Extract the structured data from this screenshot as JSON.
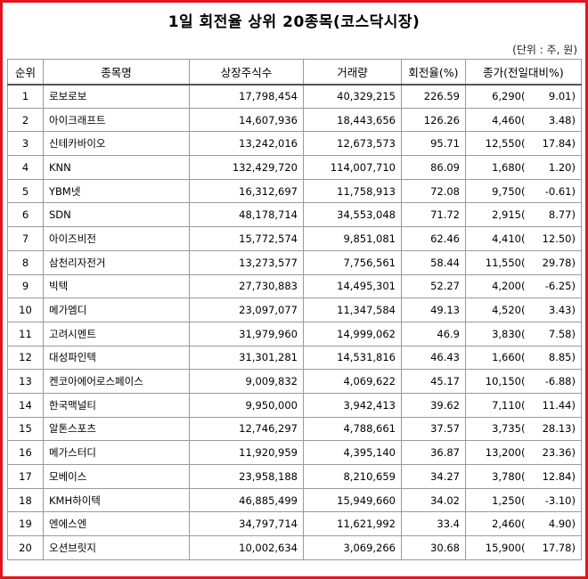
{
  "title": "1일 회전율 상위 20종목(코스닥시장)",
  "unit": "(단위 : 주, 원)",
  "headers": {
    "rank": "순위",
    "name": "종목명",
    "listed": "상장주식수",
    "volume": "거래량",
    "turnover": "회전율(%)",
    "close": "종가(전일대비%)"
  },
  "rows": [
    {
      "rank": "1",
      "name": "로보로보",
      "listed": "17,798,454",
      "volume": "40,329,215",
      "turnover": "226.59",
      "close": "6,290",
      "change": "9.01"
    },
    {
      "rank": "2",
      "name": "아이크래프트",
      "listed": "14,607,936",
      "volume": "18,443,656",
      "turnover": "126.26",
      "close": "4,460",
      "change": "3.48"
    },
    {
      "rank": "3",
      "name": "신테카바이오",
      "listed": "13,242,016",
      "volume": "12,673,573",
      "turnover": "95.71",
      "close": "12,550",
      "change": "17.84"
    },
    {
      "rank": "4",
      "name": "KNN",
      "listed": "132,429,720",
      "volume": "114,007,710",
      "turnover": "86.09",
      "close": "1,680",
      "change": "1.20"
    },
    {
      "rank": "5",
      "name": "YBM넷",
      "listed": "16,312,697",
      "volume": "11,758,913",
      "turnover": "72.08",
      "close": "9,750",
      "change": "-0.61"
    },
    {
      "rank": "6",
      "name": "SDN",
      "listed": "48,178,714",
      "volume": "34,553,048",
      "turnover": "71.72",
      "close": "2,915",
      "change": "8.77"
    },
    {
      "rank": "7",
      "name": "아이즈비전",
      "listed": "15,772,574",
      "volume": "9,851,081",
      "turnover": "62.46",
      "close": "4,410",
      "change": "12.50"
    },
    {
      "rank": "8",
      "name": "삼천리자전거",
      "listed": "13,273,577",
      "volume": "7,756,561",
      "turnover": "58.44",
      "close": "11,550",
      "change": "29.78"
    },
    {
      "rank": "9",
      "name": "빅텍",
      "listed": "27,730,883",
      "volume": "14,495,301",
      "turnover": "52.27",
      "close": "4,200",
      "change": "-6.25"
    },
    {
      "rank": "10",
      "name": "메가엠디",
      "listed": "23,097,077",
      "volume": "11,347,584",
      "turnover": "49.13",
      "close": "4,520",
      "change": "3.43"
    },
    {
      "rank": "11",
      "name": "고려시멘트",
      "listed": "31,979,960",
      "volume": "14,999,062",
      "turnover": "46.9",
      "close": "3,830",
      "change": "7.58"
    },
    {
      "rank": "12",
      "name": "대성파인텍",
      "listed": "31,301,281",
      "volume": "14,531,816",
      "turnover": "46.43",
      "close": "1,660",
      "change": "8.85"
    },
    {
      "rank": "13",
      "name": "켄코아에어로스페이스",
      "listed": "9,009,832",
      "volume": "4,069,622",
      "turnover": "45.17",
      "close": "10,150",
      "change": "-6.88"
    },
    {
      "rank": "14",
      "name": "한국맥널티",
      "listed": "9,950,000",
      "volume": "3,942,413",
      "turnover": "39.62",
      "close": "7,110",
      "change": "11.44"
    },
    {
      "rank": "15",
      "name": "알톤스포츠",
      "listed": "12,746,297",
      "volume": "4,788,661",
      "turnover": "37.57",
      "close": "3,735",
      "change": "28.13"
    },
    {
      "rank": "16",
      "name": "메가스터디",
      "listed": "11,920,959",
      "volume": "4,395,140",
      "turnover": "36.87",
      "close": "13,200",
      "change": "23.36"
    },
    {
      "rank": "17",
      "name": "모베이스",
      "listed": "23,958,188",
      "volume": "8,210,659",
      "turnover": "34.27",
      "close": "3,780",
      "change": "12.84"
    },
    {
      "rank": "18",
      "name": "KMH하이텍",
      "listed": "46,885,499",
      "volume": "15,949,660",
      "turnover": "34.02",
      "close": "1,250",
      "change": "-3.10"
    },
    {
      "rank": "19",
      "name": "엔에스엔",
      "listed": "34,797,714",
      "volume": "11,621,992",
      "turnover": "33.4",
      "close": "2,460",
      "change": "4.90"
    },
    {
      "rank": "20",
      "name": "오션브릿지",
      "listed": "10,002,634",
      "volume": "3,069,266",
      "turnover": "30.68",
      "close": "15,900",
      "change": "17.78"
    }
  ],
  "colors": {
    "frame": "#e0141e",
    "grid": "#9a9a9a"
  }
}
